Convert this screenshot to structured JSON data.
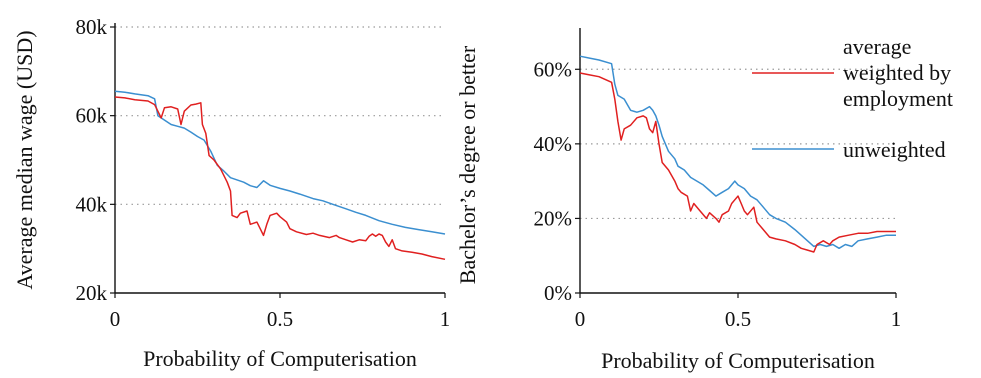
{
  "chart_data": [
    {
      "type": "line",
      "xlabel": "Probability of Computerisation",
      "ylabel": "Average median wage (USD)",
      "xlim": [
        0,
        1
      ],
      "ylim": [
        20000,
        80000
      ],
      "x_ticks": [
        0,
        0.5,
        1
      ],
      "x_tick_labels": [
        "0",
        "0.5",
        "1"
      ],
      "y_ticks": [
        20000,
        40000,
        60000,
        80000
      ],
      "y_tick_labels": [
        "20k",
        "40k",
        "60k",
        "80k"
      ],
      "grid": "horizontal dotted",
      "series": [
        {
          "key": "weighted",
          "color": "#e02020",
          "points": [
            [
              0,
              64200
            ],
            [
              0.03,
              64000
            ],
            [
              0.06,
              63600
            ],
            [
              0.1,
              63300
            ],
            [
              0.12,
              62500
            ],
            [
              0.14,
              59500
            ],
            [
              0.15,
              61800
            ],
            [
              0.17,
              62000
            ],
            [
              0.19,
              61500
            ],
            [
              0.2,
              58000
            ],
            [
              0.21,
              61000
            ],
            [
              0.23,
              62400
            ],
            [
              0.245,
              62600
            ],
            [
              0.26,
              62900
            ],
            [
              0.265,
              58000
            ],
            [
              0.275,
              56000
            ],
            [
              0.285,
              51000
            ],
            [
              0.3,
              50000
            ],
            [
              0.32,
              48000
            ],
            [
              0.34,
              45000
            ],
            [
              0.35,
              43000
            ],
            [
              0.355,
              37500
            ],
            [
              0.37,
              37000
            ],
            [
              0.38,
              38000
            ],
            [
              0.4,
              38500
            ],
            [
              0.41,
              35500
            ],
            [
              0.43,
              36000
            ],
            [
              0.44,
              34500
            ],
            [
              0.45,
              33000
            ],
            [
              0.46,
              35500
            ],
            [
              0.47,
              37500
            ],
            [
              0.49,
              38000
            ],
            [
              0.5,
              37200
            ],
            [
              0.52,
              36000
            ],
            [
              0.53,
              34500
            ],
            [
              0.55,
              33800
            ],
            [
              0.58,
              33200
            ],
            [
              0.6,
              33500
            ],
            [
              0.62,
              33000
            ],
            [
              0.65,
              32500
            ],
            [
              0.67,
              33000
            ],
            [
              0.68,
              32500
            ],
            [
              0.7,
              32000
            ],
            [
              0.72,
              31500
            ],
            [
              0.74,
              32000
            ],
            [
              0.76,
              31800
            ],
            [
              0.77,
              32800
            ],
            [
              0.78,
              33300
            ],
            [
              0.79,
              32800
            ],
            [
              0.8,
              33300
            ],
            [
              0.81,
              33000
            ],
            [
              0.82,
              31500
            ],
            [
              0.83,
              30500
            ],
            [
              0.84,
              32000
            ],
            [
              0.85,
              30000
            ],
            [
              0.87,
              29500
            ],
            [
              0.9,
              29200
            ],
            [
              0.93,
              28800
            ],
            [
              0.96,
              28200
            ],
            [
              1.0,
              27600
            ]
          ]
        },
        {
          "key": "unweighted",
          "color": "#3b8fd0",
          "points": [
            [
              0,
              65500
            ],
            [
              0.03,
              65300
            ],
            [
              0.06,
              64900
            ],
            [
              0.1,
              64500
            ],
            [
              0.12,
              63800
            ],
            [
              0.13,
              60000
            ],
            [
              0.15,
              59000
            ],
            [
              0.17,
              58000
            ],
            [
              0.19,
              57600
            ],
            [
              0.21,
              57200
            ],
            [
              0.23,
              56300
            ],
            [
              0.25,
              55300
            ],
            [
              0.27,
              54500
            ],
            [
              0.29,
              52000
            ],
            [
              0.31,
              48800
            ],
            [
              0.33,
              47500
            ],
            [
              0.35,
              46000
            ],
            [
              0.37,
              45500
            ],
            [
              0.39,
              45000
            ],
            [
              0.41,
              44200
            ],
            [
              0.43,
              43800
            ],
            [
              0.45,
              45300
            ],
            [
              0.47,
              44300
            ],
            [
              0.5,
              43600
            ],
            [
              0.53,
              43000
            ],
            [
              0.56,
              42300
            ],
            [
              0.6,
              41300
            ],
            [
              0.63,
              40800
            ],
            [
              0.66,
              40000
            ],
            [
              0.7,
              39000
            ],
            [
              0.73,
              38200
            ],
            [
              0.76,
              37500
            ],
            [
              0.8,
              36300
            ],
            [
              0.84,
              35500
            ],
            [
              0.88,
              34800
            ],
            [
              0.92,
              34300
            ],
            [
              0.96,
              33800
            ],
            [
              1.0,
              33300
            ]
          ]
        }
      ]
    },
    {
      "type": "line",
      "xlabel": "Probability of Computerisation",
      "ylabel": "Bachelor’s degree or better",
      "xlim": [
        0,
        1
      ],
      "ylim": [
        0,
        0.7
      ],
      "x_ticks": [
        0,
        0.5,
        1
      ],
      "x_tick_labels": [
        "0",
        "0.5",
        "1"
      ],
      "y_ticks": [
        0,
        0.2,
        0.4,
        0.6
      ],
      "y_tick_labels": [
        "0%",
        "20%",
        "40%",
        "60%"
      ],
      "grid": "horizontal dotted",
      "legend_position": "top-right",
      "series": [
        {
          "key": "weighted",
          "name": "average weighted by employment",
          "color": "#e02020",
          "points": [
            [
              0,
              0.59
            ],
            [
              0.03,
              0.585
            ],
            [
              0.06,
              0.58
            ],
            [
              0.1,
              0.565
            ],
            [
              0.11,
              0.52
            ],
            [
              0.12,
              0.46
            ],
            [
              0.13,
              0.41
            ],
            [
              0.14,
              0.44
            ],
            [
              0.16,
              0.45
            ],
            [
              0.18,
              0.47
            ],
            [
              0.2,
              0.475
            ],
            [
              0.21,
              0.47
            ],
            [
              0.22,
              0.44
            ],
            [
              0.23,
              0.43
            ],
            [
              0.24,
              0.46
            ],
            [
              0.25,
              0.4
            ],
            [
              0.26,
              0.35
            ],
            [
              0.28,
              0.33
            ],
            [
              0.3,
              0.3
            ],
            [
              0.31,
              0.28
            ],
            [
              0.32,
              0.27
            ],
            [
              0.34,
              0.26
            ],
            [
              0.35,
              0.22
            ],
            [
              0.36,
              0.24
            ],
            [
              0.38,
              0.22
            ],
            [
              0.4,
              0.2
            ],
            [
              0.41,
              0.215
            ],
            [
              0.43,
              0.2
            ],
            [
              0.44,
              0.19
            ],
            [
              0.45,
              0.21
            ],
            [
              0.47,
              0.22
            ],
            [
              0.48,
              0.24
            ],
            [
              0.49,
              0.25
            ],
            [
              0.5,
              0.26
            ],
            [
              0.51,
              0.24
            ],
            [
              0.52,
              0.22
            ],
            [
              0.53,
              0.21
            ],
            [
              0.55,
              0.23
            ],
            [
              0.56,
              0.19
            ],
            [
              0.58,
              0.17
            ],
            [
              0.6,
              0.15
            ],
            [
              0.62,
              0.145
            ],
            [
              0.65,
              0.14
            ],
            [
              0.68,
              0.13
            ],
            [
              0.7,
              0.12
            ],
            [
              0.72,
              0.115
            ],
            [
              0.74,
              0.11
            ],
            [
              0.75,
              0.13
            ],
            [
              0.77,
              0.14
            ],
            [
              0.79,
              0.13
            ],
            [
              0.8,
              0.14
            ],
            [
              0.82,
              0.15
            ],
            [
              0.85,
              0.155
            ],
            [
              0.88,
              0.16
            ],
            [
              0.91,
              0.16
            ],
            [
              0.94,
              0.165
            ],
            [
              1.0,
              0.165
            ]
          ]
        },
        {
          "key": "unweighted",
          "name": "unweighted",
          "color": "#3b8fd0",
          "points": [
            [
              0,
              0.635
            ],
            [
              0.03,
              0.63
            ],
            [
              0.06,
              0.625
            ],
            [
              0.1,
              0.615
            ],
            [
              0.11,
              0.56
            ],
            [
              0.12,
              0.53
            ],
            [
              0.14,
              0.52
            ],
            [
              0.16,
              0.49
            ],
            [
              0.18,
              0.485
            ],
            [
              0.2,
              0.49
            ],
            [
              0.22,
              0.5
            ],
            [
              0.23,
              0.49
            ],
            [
              0.24,
              0.475
            ],
            [
              0.25,
              0.45
            ],
            [
              0.26,
              0.42
            ],
            [
              0.28,
              0.38
            ],
            [
              0.3,
              0.36
            ],
            [
              0.31,
              0.34
            ],
            [
              0.33,
              0.33
            ],
            [
              0.35,
              0.31
            ],
            [
              0.37,
              0.3
            ],
            [
              0.39,
              0.29
            ],
            [
              0.41,
              0.275
            ],
            [
              0.43,
              0.26
            ],
            [
              0.45,
              0.27
            ],
            [
              0.47,
              0.28
            ],
            [
              0.49,
              0.3
            ],
            [
              0.5,
              0.29
            ],
            [
              0.52,
              0.28
            ],
            [
              0.54,
              0.26
            ],
            [
              0.56,
              0.25
            ],
            [
              0.58,
              0.23
            ],
            [
              0.6,
              0.21
            ],
            [
              0.62,
              0.2
            ],
            [
              0.65,
              0.19
            ],
            [
              0.68,
              0.17
            ],
            [
              0.7,
              0.155
            ],
            [
              0.72,
              0.14
            ],
            [
              0.74,
              0.125
            ],
            [
              0.76,
              0.13
            ],
            [
              0.78,
              0.125
            ],
            [
              0.8,
              0.13
            ],
            [
              0.82,
              0.12
            ],
            [
              0.84,
              0.13
            ],
            [
              0.86,
              0.125
            ],
            [
              0.88,
              0.14
            ],
            [
              0.91,
              0.145
            ],
            [
              0.94,
              0.15
            ],
            [
              0.97,
              0.155
            ],
            [
              1.0,
              0.155
            ]
          ]
        }
      ]
    }
  ]
}
